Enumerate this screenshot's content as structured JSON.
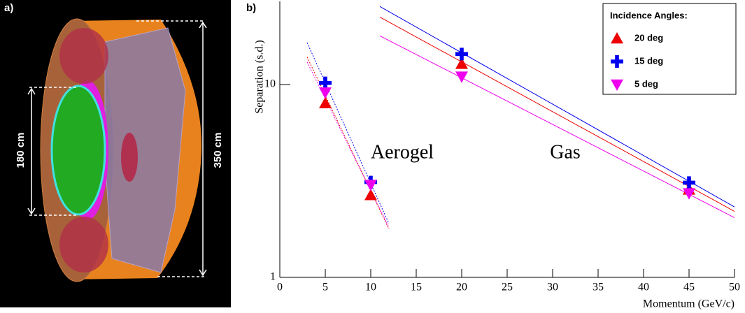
{
  "panel_a": {
    "label": "a)",
    "dimensions": [
      "180 cm",
      "350 cm"
    ]
  },
  "chart_data": {
    "type": "scatter",
    "panel_label": "b)",
    "x_label": "Momentum (GeV/c)",
    "y_label": "Separation (s.d.)",
    "xlim": [
      0,
      50
    ],
    "xticks": [
      0,
      5,
      10,
      15,
      20,
      25,
      30,
      35,
      40,
      45,
      50
    ],
    "ylim": [
      1,
      27
    ],
    "yticks": [
      1,
      10
    ],
    "log_y": true,
    "legend_title": "Incidence Angles:",
    "legend_position": "top-right",
    "annotations": [
      "Aerogel",
      "Gas"
    ],
    "series": [
      {
        "name": "20 deg",
        "color": "#ee0000",
        "marker": "triangle-up",
        "x": [
          5,
          10,
          20,
          45
        ],
        "values": [
          8.0,
          2.67,
          12.8,
          2.85
        ]
      },
      {
        "name": "15 deg",
        "color": "#0000ee",
        "marker": "plus",
        "x": [
          5,
          10,
          20,
          45
        ],
        "values": [
          10.2,
          3.12,
          14.4,
          3.1
        ]
      },
      {
        "name": "5 deg",
        "color": "#ee00ee",
        "marker": "triangle-down",
        "x": [
          5,
          10,
          20,
          45
        ],
        "values": [
          9.1,
          3.02,
          11.0,
          2.73
        ]
      }
    ],
    "fits": [
      {
        "color": "#ee0000",
        "style": "solid",
        "x": [
          11,
          50
        ],
        "values": [
          22.4,
          2.2
        ]
      },
      {
        "color": "#0000ee",
        "style": "solid",
        "x": [
          11,
          50
        ],
        "values": [
          25.4,
          2.32
        ]
      },
      {
        "color": "#ee00ee",
        "style": "solid",
        "x": [
          11,
          50
        ],
        "values": [
          17.9,
          2.04
        ]
      },
      {
        "color": "#ee0000",
        "style": "dotted",
        "x": [
          3,
          12
        ],
        "values": [
          13.9,
          1.78
        ]
      },
      {
        "color": "#0000ee",
        "style": "dotted",
        "x": [
          3,
          12
        ],
        "values": [
          16.5,
          1.9
        ]
      },
      {
        "color": "#ee00ee",
        "style": "dotted",
        "x": [
          3,
          12
        ],
        "values": [
          13.1,
          1.82
        ]
      }
    ]
  }
}
